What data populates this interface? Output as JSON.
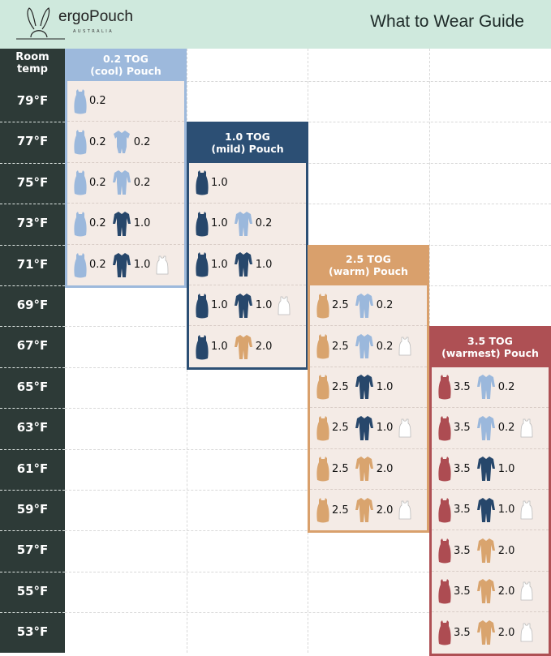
{
  "header": {
    "brand": "ergoPouch",
    "brand_sub": "AUSTRALIA",
    "title": "What to Wear Guide",
    "bg": "#cfe9dd"
  },
  "left": {
    "heading": "Room temp",
    "temps": [
      "79°F",
      "77°F",
      "75°F",
      "73°F",
      "71°F",
      "69°F",
      "67°F",
      "65°F",
      "63°F",
      "61°F",
      "59°F",
      "57°F",
      "55°F",
      "53°F"
    ]
  },
  "colors": {
    "lightblue": "#9bb8dc",
    "navy": "#27476b",
    "tan": "#d9a46e",
    "red": "#ad4c52",
    "singlet": "#ffffff"
  },
  "cards": [
    {
      "title1": "0.2 TOG",
      "title2": "(cool) Pouch",
      "color": "#9db9dc",
      "start": 0,
      "rows": [
        [
          {
            "icon": "pouch",
            "c": "lightblue",
            "v": "0.2"
          }
        ],
        [
          {
            "icon": "pouch",
            "c": "lightblue",
            "v": "0.2"
          },
          {
            "icon": "romper-short",
            "c": "lightblue",
            "v": "0.2"
          }
        ],
        [
          {
            "icon": "pouch",
            "c": "lightblue",
            "v": "0.2"
          },
          {
            "icon": "suit",
            "c": "lightblue",
            "v": "0.2"
          }
        ],
        [
          {
            "icon": "pouch",
            "c": "lightblue",
            "v": "0.2"
          },
          {
            "icon": "suit",
            "c": "navy",
            "v": "1.0"
          }
        ],
        [
          {
            "icon": "pouch",
            "c": "lightblue",
            "v": "0.2"
          },
          {
            "icon": "suit",
            "c": "navy",
            "v": "1.0"
          },
          {
            "icon": "singlet",
            "c": "singlet"
          }
        ]
      ]
    },
    {
      "title1": "1.0 TOG",
      "title2": "(mild) Pouch",
      "color": "#2c4f74",
      "start": 2,
      "rows": [
        [
          {
            "icon": "pouch",
            "c": "navy",
            "v": "1.0"
          }
        ],
        [
          {
            "icon": "pouch",
            "c": "navy",
            "v": "1.0"
          },
          {
            "icon": "suit",
            "c": "lightblue",
            "v": "0.2"
          }
        ],
        [
          {
            "icon": "pouch",
            "c": "navy",
            "v": "1.0"
          },
          {
            "icon": "suit",
            "c": "navy",
            "v": "1.0"
          }
        ],
        [
          {
            "icon": "pouch",
            "c": "navy",
            "v": "1.0"
          },
          {
            "icon": "suit",
            "c": "navy",
            "v": "1.0"
          },
          {
            "icon": "singlet",
            "c": "singlet"
          }
        ],
        [
          {
            "icon": "pouch",
            "c": "navy",
            "v": "1.0"
          },
          {
            "icon": "suit",
            "c": "tan",
            "v": "2.0"
          }
        ]
      ]
    },
    {
      "title1": "2.5 TOG",
      "title2": "(warm) Pouch",
      "color": "#d9a06c",
      "start": 5,
      "rows": [
        [
          {
            "icon": "pouch",
            "c": "tan",
            "v": "2.5"
          },
          {
            "icon": "suit",
            "c": "lightblue",
            "v": "0.2"
          }
        ],
        [
          {
            "icon": "pouch",
            "c": "tan",
            "v": "2.5"
          },
          {
            "icon": "suit",
            "c": "lightblue",
            "v": "0.2"
          },
          {
            "icon": "singlet",
            "c": "singlet"
          }
        ],
        [
          {
            "icon": "pouch",
            "c": "tan",
            "v": "2.5"
          },
          {
            "icon": "suit",
            "c": "navy",
            "v": "1.0"
          }
        ],
        [
          {
            "icon": "pouch",
            "c": "tan",
            "v": "2.5"
          },
          {
            "icon": "suit",
            "c": "navy",
            "v": "1.0"
          },
          {
            "icon": "singlet",
            "c": "singlet"
          }
        ],
        [
          {
            "icon": "pouch",
            "c": "tan",
            "v": "2.5"
          },
          {
            "icon": "suit",
            "c": "tan",
            "v": "2.0"
          }
        ],
        [
          {
            "icon": "pouch",
            "c": "tan",
            "v": "2.5"
          },
          {
            "icon": "suit",
            "c": "tan",
            "v": "2.0"
          },
          {
            "icon": "singlet",
            "c": "singlet"
          }
        ]
      ]
    },
    {
      "title1": "3.5 TOG",
      "title2": "(warmest) Pouch",
      "color": "#ae5054",
      "start": 7,
      "rows": [
        [
          {
            "icon": "pouch",
            "c": "red",
            "v": "3.5"
          },
          {
            "icon": "suit",
            "c": "lightblue",
            "v": "0.2"
          }
        ],
        [
          {
            "icon": "pouch",
            "c": "red",
            "v": "3.5"
          },
          {
            "icon": "suit",
            "c": "lightblue",
            "v": "0.2"
          },
          {
            "icon": "singlet",
            "c": "singlet"
          }
        ],
        [
          {
            "icon": "pouch",
            "c": "red",
            "v": "3.5"
          },
          {
            "icon": "suit",
            "c": "navy",
            "v": "1.0"
          }
        ],
        [
          {
            "icon": "pouch",
            "c": "red",
            "v": "3.5"
          },
          {
            "icon": "suit",
            "c": "navy",
            "v": "1.0"
          },
          {
            "icon": "singlet",
            "c": "singlet"
          }
        ],
        [
          {
            "icon": "pouch",
            "c": "red",
            "v": "3.5"
          },
          {
            "icon": "suit",
            "c": "tan",
            "v": "2.0"
          }
        ],
        [
          {
            "icon": "pouch",
            "c": "red",
            "v": "3.5"
          },
          {
            "icon": "suit",
            "c": "tan",
            "v": "2.0"
          },
          {
            "icon": "singlet",
            "c": "singlet"
          }
        ],
        [
          {
            "icon": "pouch",
            "c": "red",
            "v": "3.5"
          },
          {
            "icon": "suit",
            "c": "tan",
            "v": "2.0"
          },
          {
            "icon": "singlet",
            "c": "singlet"
          }
        ]
      ]
    }
  ]
}
